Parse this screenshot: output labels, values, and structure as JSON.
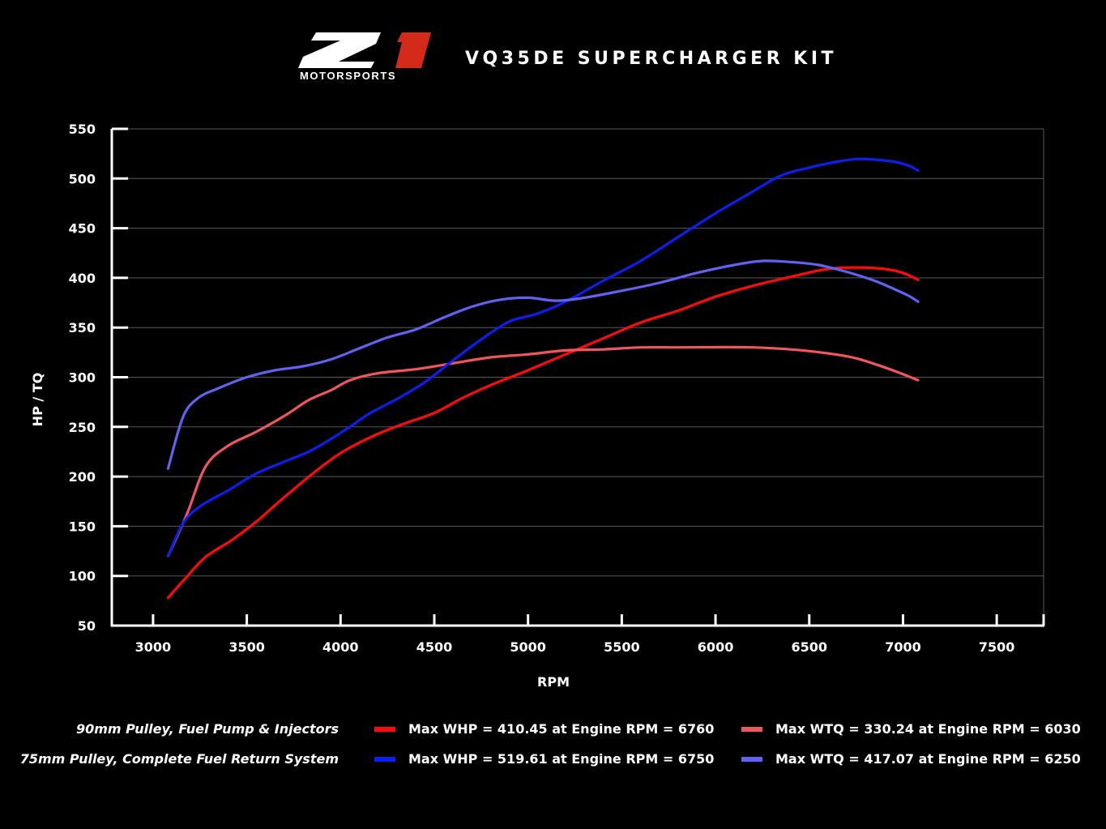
{
  "header": {
    "logo_letters": "Z1",
    "logo_sub": "MOTORSPORTS",
    "title": "VQ35DE SUPERCHARGER KIT"
  },
  "colors": {
    "background": "#000000",
    "grid": "#5a5a5a",
    "axis": "#ffffff",
    "logo_red": "#d42a1a"
  },
  "chart_data": {
    "type": "line",
    "title": "VQ35DE SUPERCHARGER KIT",
    "xlabel": "RPM",
    "ylabel": "HP / TQ",
    "xlim": [
      2780,
      7750
    ],
    "ylim": [
      50,
      550
    ],
    "xticks": [
      3000,
      3500,
      4000,
      4500,
      5000,
      5500,
      6000,
      6500,
      7000,
      7500
    ],
    "yticks": [
      50,
      100,
      150,
      200,
      250,
      300,
      350,
      400,
      450,
      500,
      550
    ],
    "grid": true,
    "series": [
      {
        "name": "Max WHP = 410.45 at Engine RPM = 6760",
        "config": "90mm Pulley, Fuel Pump & Injectors",
        "metric": "WHP",
        "color": "#ff0a0a",
        "x": [
          3080,
          3170,
          3280,
          3420,
          3560,
          3680,
          3800,
          3920,
          4030,
          4200,
          4350,
          4500,
          4650,
          4800,
          5000,
          5200,
          5400,
          5600,
          5800,
          6000,
          6200,
          6400,
          6600,
          6760,
          6900,
          7000,
          7080
        ],
        "y": [
          78,
          97,
          119,
          136,
          156,
          176,
          195,
          213,
          227,
          243,
          254,
          264,
          279,
          292,
          307,
          323,
          339,
          355,
          367,
          381,
          392,
          401,
          409,
          410.45,
          409,
          405,
          398
        ]
      },
      {
        "name": "Max WTQ = 330.24 at Engine RPM = 6030",
        "config": "90mm Pulley, Fuel Pump & Injectors",
        "metric": "WTQ",
        "color": "#f0565c",
        "x": [
          3080,
          3180,
          3280,
          3400,
          3550,
          3700,
          3830,
          3950,
          4050,
          4200,
          4400,
          4600,
          4800,
          5000,
          5200,
          5400,
          5600,
          5800,
          6030,
          6200,
          6400,
          6600,
          6750,
          6900,
          7000,
          7080
        ],
        "y": [
          120,
          162,
          210,
          231,
          245,
          261,
          277,
          287,
          297,
          304,
          308,
          314,
          320,
          323,
          327,
          328,
          330,
          330,
          330.24,
          330,
          328,
          324,
          319,
          310,
          303,
          297
        ]
      },
      {
        "name": "Max WHP = 519.61 at Engine RPM = 6750",
        "config": "75mm Pulley, Complete Fuel Return System",
        "metric": "WHP",
        "color": "#0a1ff0",
        "x": [
          3080,
          3160,
          3250,
          3400,
          3550,
          3700,
          3830,
          3950,
          4050,
          4150,
          4300,
          4450,
          4600,
          4750,
          4900,
          5050,
          5200,
          5400,
          5600,
          5800,
          6000,
          6200,
          6350,
          6500,
          6650,
          6750,
          6850,
          6950,
          7030,
          7080
        ],
        "y": [
          120,
          153,
          170,
          186,
          203,
          215,
          225,
          238,
          250,
          263,
          278,
          295,
          317,
          338,
          356,
          364,
          376,
          397,
          417,
          441,
          465,
          487,
          503,
          511,
          517,
          519.61,
          519,
          517,
          513,
          508
        ]
      },
      {
        "name": "Max WTQ = 417.07 at Engine RPM = 6250",
        "config": "75mm Pulley, Complete Fuel Return System",
        "metric": "WTQ",
        "color": "#6262f2",
        "x": [
          3080,
          3160,
          3240,
          3350,
          3500,
          3650,
          3800,
          3950,
          4100,
          4250,
          4400,
          4550,
          4700,
          4850,
          5000,
          5150,
          5300,
          5500,
          5700,
          5900,
          6100,
          6250,
          6400,
          6550,
          6700,
          6850,
          6950,
          7030,
          7080
        ],
        "y": [
          208,
          260,
          279,
          289,
          300,
          307,
          311,
          318,
          329,
          340,
          348,
          360,
          371,
          378,
          380,
          377,
          380,
          387,
          395,
          405,
          413,
          417.07,
          416,
          413,
          406,
          397,
          389,
          382,
          376
        ]
      }
    ]
  }
}
